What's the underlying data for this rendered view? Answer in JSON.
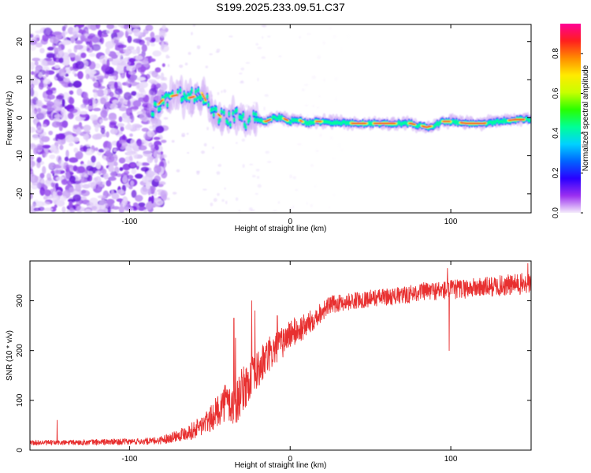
{
  "title": "S199.2025.233.09.51.C37",
  "chart_data": [
    {
      "type": "heatmap",
      "xlabel": "Height of straight line (km)",
      "ylabel": "Frequency (Hz)",
      "xlim": [
        -162,
        150
      ],
      "ylim": [
        -25,
        24.5
      ],
      "xticks": [
        -100,
        0,
        100
      ],
      "yticks": [
        20,
        10,
        0,
        -10,
        -20
      ],
      "colorbar": {
        "label": "Normalized spectral amplitude",
        "range": [
          0,
          0.95
        ],
        "ticks": [
          "0.0",
          "0.2",
          "0.4",
          "0.6",
          "0.8"
        ],
        "colors": [
          "#f4ecfb",
          "#9b2ff0",
          "#2a00ff",
          "#0064ff",
          "#00d2ff",
          "#00ff96",
          "#28ff00",
          "#c8ff00",
          "#ffea00",
          "#ff8c00",
          "#ff1e1e",
          "#ff0096"
        ]
      },
      "signal_track": {
        "description_points_x": [
          -85,
          -80,
          -75,
          -70,
          -65,
          -60,
          -55,
          -50,
          -45,
          -40,
          -35,
          -30,
          -25,
          -20,
          -15,
          -10,
          -5,
          0,
          5,
          10,
          15,
          20,
          40,
          60,
          75,
          80,
          85,
          90,
          95,
          100,
          110,
          120,
          130,
          140,
          148
        ],
        "frequency_hz": [
          2,
          4.5,
          5.5,
          6,
          5,
          5.5,
          6.5,
          2.5,
          1,
          -1,
          0.5,
          -1,
          0,
          -0.5,
          -1,
          0,
          0,
          -1,
          -0.5,
          -1.5,
          -1,
          -1,
          -1.5,
          -1.5,
          -1.5,
          -2,
          -2.5,
          -2,
          -1,
          -1,
          -1.5,
          -1.5,
          -1,
          -0.5,
          -0.5
        ]
      }
    },
    {
      "type": "line",
      "xlabel": "Height of straight line (km)",
      "ylabel": "SNR (10 * v/v)",
      "xlim": [
        -162,
        150
      ],
      "ylim": [
        0,
        380
      ],
      "xticks": [
        -100,
        0,
        100
      ],
      "yticks": [
        0,
        100,
        200,
        300
      ],
      "color": "#e83030",
      "series": [
        {
          "name": "SNR",
          "x": [
            -162,
            -140,
            -120,
            -100,
            -85,
            -78,
            -70,
            -60,
            -50,
            -45,
            -40,
            -35,
            -30,
            -25,
            -20,
            -15,
            -10,
            -5,
            0,
            5,
            10,
            15,
            20,
            25,
            30,
            40,
            50,
            60,
            70,
            80,
            90,
            100,
            110,
            120,
            130,
            140,
            150
          ],
          "values": [
            15,
            15,
            16,
            17,
            18,
            22,
            30,
            40,
            60,
            80,
            100,
            85,
            120,
            140,
            160,
            185,
            200,
            215,
            235,
            240,
            250,
            265,
            280,
            292,
            295,
            300,
            305,
            308,
            310,
            318,
            320,
            322,
            325,
            327,
            330,
            332,
            335
          ],
          "noise": [
            5,
            5,
            6,
            6,
            7,
            9,
            12,
            18,
            25,
            32,
            40,
            45,
            45,
            42,
            40,
            38,
            35,
            32,
            30,
            28,
            25,
            22,
            20,
            18,
            17,
            17,
            17,
            17,
            18,
            18,
            19,
            20,
            20,
            20,
            21,
            22,
            22
          ]
        }
      ],
      "spikes": [
        {
          "x": -145,
          "y": 60
        },
        {
          "x": -35,
          "y": 265
        },
        {
          "x": -34,
          "y": 225
        },
        {
          "x": -24,
          "y": 300
        },
        {
          "x": -22,
          "y": 280
        },
        {
          "x": -8,
          "y": 270
        },
        {
          "x": 98,
          "y": 365
        },
        {
          "x": 99,
          "y": 200
        },
        {
          "x": 148,
          "y": 375
        }
      ]
    }
  ]
}
